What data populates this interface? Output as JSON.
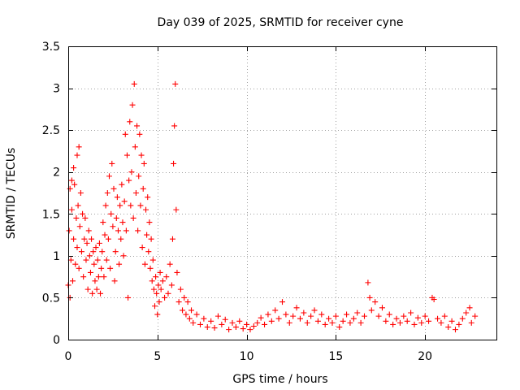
{
  "chart_data": {
    "type": "scatter",
    "title": "Day 039 of 2025, SRMTID for receiver cyne",
    "xlabel": "GPS time / hours",
    "ylabel": "SRMTID / TECUs",
    "xlim": [
      0,
      24
    ],
    "ylim": [
      0,
      3.5
    ],
    "xticks": [
      0,
      5,
      10,
      15,
      20
    ],
    "xtick_labels": [
      "0",
      "5",
      "10",
      "15",
      "20"
    ],
    "yticks": [
      0,
      0.5,
      1,
      1.5,
      2,
      2.5,
      3,
      3.5
    ],
    "ytick_labels": [
      "0",
      "0.5",
      "1",
      "1.5",
      "2",
      "2.5",
      "3",
      "3.5"
    ],
    "grid": true,
    "marker": "plus",
    "color": "#ff0000",
    "series": [
      {
        "name": "SRMTID",
        "points": [
          [
            0.0,
            0.65
          ],
          [
            0.05,
            1.3
          ],
          [
            0.1,
            0.5
          ],
          [
            0.1,
            1.8
          ],
          [
            0.15,
            0.95
          ],
          [
            0.2,
            1.55
          ],
          [
            0.2,
            1.9
          ],
          [
            0.25,
            0.7
          ],
          [
            0.3,
            1.2
          ],
          [
            0.3,
            2.05
          ],
          [
            0.35,
            1.85
          ],
          [
            0.4,
            0.9
          ],
          [
            0.45,
            1.45
          ],
          [
            0.5,
            1.1
          ],
          [
            0.5,
            2.2
          ],
          [
            0.55,
            1.6
          ],
          [
            0.6,
            0.85
          ],
          [
            0.6,
            2.3
          ],
          [
            0.65,
            1.35
          ],
          [
            0.7,
            1.75
          ],
          [
            0.75,
            1.05
          ],
          [
            0.8,
            1.5
          ],
          [
            0.85,
            0.75
          ],
          [
            0.9,
            1.2
          ],
          [
            0.95,
            1.45
          ],
          [
            1.0,
            0.95
          ],
          [
            1.05,
            1.15
          ],
          [
            1.1,
            0.6
          ],
          [
            1.15,
            1.3
          ],
          [
            1.2,
            1.0
          ],
          [
            1.25,
            0.8
          ],
          [
            1.3,
            1.2
          ],
          [
            1.35,
            0.55
          ],
          [
            1.4,
            1.05
          ],
          [
            1.45,
            0.9
          ],
          [
            1.5,
            0.7
          ],
          [
            1.55,
            1.1
          ],
          [
            1.6,
            0.6
          ],
          [
            1.65,
            0.95
          ],
          [
            1.7,
            0.75
          ],
          [
            1.75,
            1.15
          ],
          [
            1.8,
            0.55
          ],
          [
            1.85,
            0.85
          ],
          [
            1.9,
            1.05
          ],
          [
            1.95,
            1.4
          ],
          [
            2.0,
            0.75
          ],
          [
            2.05,
            1.25
          ],
          [
            2.1,
            1.6
          ],
          [
            2.15,
            0.95
          ],
          [
            2.2,
            1.75
          ],
          [
            2.25,
            1.2
          ],
          [
            2.3,
            1.95
          ],
          [
            2.35,
            0.85
          ],
          [
            2.4,
            1.5
          ],
          [
            2.45,
            2.1
          ],
          [
            2.5,
            1.35
          ],
          [
            2.55,
            1.8
          ],
          [
            2.6,
            0.7
          ],
          [
            2.65,
            1.05
          ],
          [
            2.7,
            1.45
          ],
          [
            2.75,
            1.7
          ],
          [
            2.8,
            1.3
          ],
          [
            2.85,
            0.9
          ],
          [
            2.9,
            1.6
          ],
          [
            2.95,
            1.2
          ],
          [
            3.0,
            1.85
          ],
          [
            3.05,
            1.4
          ],
          [
            3.1,
            1.0
          ],
          [
            3.15,
            1.65
          ],
          [
            3.2,
            2.45
          ],
          [
            3.25,
            1.3
          ],
          [
            3.3,
            2.2
          ],
          [
            3.35,
            0.5
          ],
          [
            3.4,
            1.9
          ],
          [
            3.45,
            2.6
          ],
          [
            3.5,
            1.6
          ],
          [
            3.55,
            2.0
          ],
          [
            3.6,
            2.8
          ],
          [
            3.65,
            1.45
          ],
          [
            3.7,
            3.05
          ],
          [
            3.75,
            2.3
          ],
          [
            3.8,
            1.75
          ],
          [
            3.85,
            2.55
          ],
          [
            3.9,
            1.3
          ],
          [
            3.95,
            1.95
          ],
          [
            4.0,
            2.45
          ],
          [
            4.05,
            1.6
          ],
          [
            4.1,
            2.2
          ],
          [
            4.15,
            1.1
          ],
          [
            4.2,
            1.8
          ],
          [
            4.25,
            2.1
          ],
          [
            4.3,
            0.9
          ],
          [
            4.35,
            1.55
          ],
          [
            4.4,
            1.25
          ],
          [
            4.45,
            1.7
          ],
          [
            4.5,
            1.05
          ],
          [
            4.55,
            1.4
          ],
          [
            4.6,
            0.85
          ],
          [
            4.65,
            1.2
          ],
          [
            4.7,
            0.7
          ],
          [
            4.75,
            0.95
          ],
          [
            4.8,
            0.6
          ],
          [
            4.85,
            0.4
          ],
          [
            4.9,
            0.75
          ],
          [
            4.95,
            0.55
          ],
          [
            5.0,
            0.3
          ],
          [
            5.05,
            0.65
          ],
          [
            5.1,
            0.45
          ],
          [
            5.15,
            0.8
          ],
          [
            5.2,
            0.6
          ],
          [
            5.3,
            0.7
          ],
          [
            5.4,
            0.5
          ],
          [
            5.5,
            0.75
          ],
          [
            5.6,
            0.55
          ],
          [
            5.7,
            0.9
          ],
          [
            5.8,
            0.65
          ],
          [
            5.85,
            1.2
          ],
          [
            5.9,
            2.1
          ],
          [
            5.95,
            2.55
          ],
          [
            6.0,
            3.05
          ],
          [
            6.05,
            1.55
          ],
          [
            6.1,
            0.8
          ],
          [
            6.2,
            0.45
          ],
          [
            6.3,
            0.6
          ],
          [
            6.4,
            0.35
          ],
          [
            6.5,
            0.5
          ],
          [
            6.6,
            0.3
          ],
          [
            6.7,
            0.45
          ],
          [
            6.8,
            0.25
          ],
          [
            6.9,
            0.35
          ],
          [
            7.0,
            0.2
          ],
          [
            7.2,
            0.3
          ],
          [
            7.4,
            0.18
          ],
          [
            7.6,
            0.25
          ],
          [
            7.8,
            0.15
          ],
          [
            8.0,
            0.22
          ],
          [
            8.2,
            0.14
          ],
          [
            8.4,
            0.28
          ],
          [
            8.6,
            0.18
          ],
          [
            8.8,
            0.24
          ],
          [
            9.0,
            0.12
          ],
          [
            9.2,
            0.2
          ],
          [
            9.4,
            0.15
          ],
          [
            9.6,
            0.22
          ],
          [
            9.8,
            0.13
          ],
          [
            10.0,
            0.18
          ],
          [
            10.2,
            0.12
          ],
          [
            10.4,
            0.16
          ],
          [
            10.6,
            0.2
          ],
          [
            10.8,
            0.26
          ],
          [
            11.0,
            0.18
          ],
          [
            11.2,
            0.3
          ],
          [
            11.4,
            0.22
          ],
          [
            11.6,
            0.35
          ],
          [
            11.8,
            0.25
          ],
          [
            12.0,
            0.45
          ],
          [
            12.2,
            0.3
          ],
          [
            12.4,
            0.2
          ],
          [
            12.6,
            0.28
          ],
          [
            12.8,
            0.38
          ],
          [
            13.0,
            0.25
          ],
          [
            13.2,
            0.32
          ],
          [
            13.4,
            0.2
          ],
          [
            13.6,
            0.28
          ],
          [
            13.8,
            0.35
          ],
          [
            14.0,
            0.22
          ],
          [
            14.2,
            0.3
          ],
          [
            14.4,
            0.18
          ],
          [
            14.6,
            0.25
          ],
          [
            14.8,
            0.2
          ],
          [
            15.0,
            0.28
          ],
          [
            15.2,
            0.15
          ],
          [
            15.4,
            0.22
          ],
          [
            15.6,
            0.3
          ],
          [
            15.8,
            0.2
          ],
          [
            16.0,
            0.25
          ],
          [
            16.2,
            0.32
          ],
          [
            16.4,
            0.2
          ],
          [
            16.6,
            0.28
          ],
          [
            16.8,
            0.68
          ],
          [
            16.9,
            0.5
          ],
          [
            17.0,
            0.35
          ],
          [
            17.2,
            0.45
          ],
          [
            17.4,
            0.28
          ],
          [
            17.6,
            0.38
          ],
          [
            17.8,
            0.22
          ],
          [
            18.0,
            0.3
          ],
          [
            18.2,
            0.18
          ],
          [
            18.4,
            0.25
          ],
          [
            18.6,
            0.2
          ],
          [
            18.8,
            0.28
          ],
          [
            19.0,
            0.22
          ],
          [
            19.2,
            0.32
          ],
          [
            19.4,
            0.18
          ],
          [
            19.6,
            0.26
          ],
          [
            19.8,
            0.2
          ],
          [
            20.0,
            0.28
          ],
          [
            20.2,
            0.22
          ],
          [
            20.4,
            0.5
          ],
          [
            20.5,
            0.48
          ],
          [
            20.7,
            0.25
          ],
          [
            20.9,
            0.2
          ],
          [
            21.1,
            0.28
          ],
          [
            21.3,
            0.15
          ],
          [
            21.5,
            0.22
          ],
          [
            21.7,
            0.12
          ],
          [
            21.9,
            0.18
          ],
          [
            22.1,
            0.25
          ],
          [
            22.3,
            0.32
          ],
          [
            22.5,
            0.38
          ],
          [
            22.6,
            0.2
          ],
          [
            22.8,
            0.28
          ]
        ]
      }
    ]
  }
}
